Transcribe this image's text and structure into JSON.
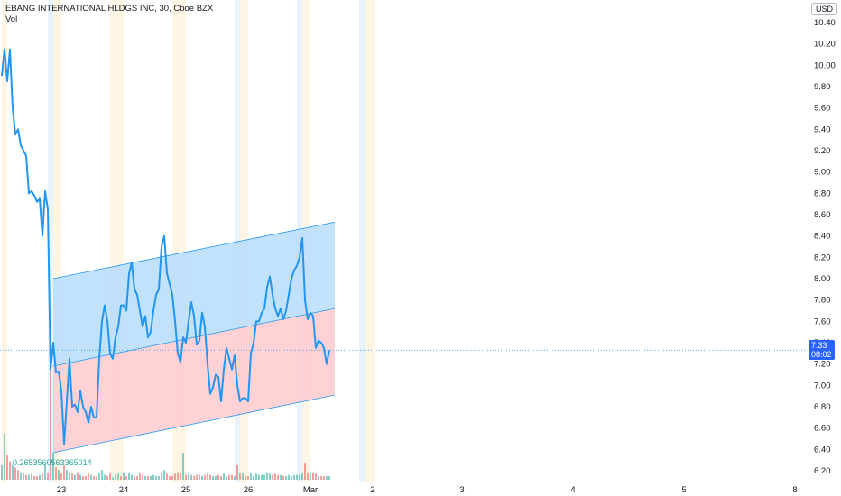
{
  "legend": {
    "title": "EBANG INTERNATIONAL HLDGS INC, 30, Cboe BZX",
    "indicator": "Vol",
    "volume_value": "0.2653560563365014"
  },
  "axis": {
    "currency": "USD"
  },
  "last_price": {
    "value": "7.33",
    "countdown": "08:02",
    "color": "#2962ff"
  },
  "colors": {
    "line": "#2196f3",
    "channel_upper_fill": "#bbdefb",
    "channel_lower_fill": "#ffcdd2",
    "session_blue": "#e3f2fd",
    "session_orange": "#fff3e0",
    "vol_up": "#26a69a",
    "vol_down": "#ef5350"
  },
  "chart_data": {
    "type": "line",
    "ylim": [
      6.1,
      10.5
    ],
    "y_ticks": [
      "10.40",
      "10.20",
      "10.00",
      "9.80",
      "9.60",
      "9.40",
      "9.20",
      "9.00",
      "8.80",
      "8.60",
      "8.40",
      "8.20",
      "8.00",
      "7.80",
      "7.60",
      "7.40",
      "7.20",
      "7.00",
      "6.80",
      "6.60",
      "6.40",
      "6.20"
    ],
    "x_ticks": [
      {
        "label": "23",
        "bar": 22
      },
      {
        "label": "24",
        "bar": 45
      },
      {
        "label": "25",
        "bar": 68
      },
      {
        "label": "26",
        "bar": 91
      },
      {
        "label": "Mar",
        "bar": 114
      },
      {
        "label": "2",
        "bar": 137
      },
      {
        "label": "3",
        "bar": 170
      },
      {
        "label": "4",
        "bar": 211
      },
      {
        "label": "5",
        "bar": 252
      },
      {
        "label": "8",
        "bar": 293
      }
    ],
    "x_range": [
      0,
      310
    ],
    "series": [
      {
        "values": [
          9.9,
          10.15,
          9.85,
          10.15,
          9.6,
          9.35,
          9.4,
          9.25,
          9.2,
          9.15,
          8.8,
          8.82,
          8.78,
          8.72,
          8.75,
          8.4,
          8.82,
          8.65,
          7.15,
          7.4,
          7.12,
          7.13,
          6.95,
          6.45,
          6.85,
          7.25,
          6.8,
          6.82,
          6.75,
          6.95,
          6.8,
          6.75,
          6.65,
          6.8,
          6.7,
          6.7,
          7.25,
          7.6,
          7.75,
          7.6,
          7.3,
          7.25,
          7.45,
          7.55,
          7.75,
          7.75,
          7.7,
          8.05,
          8.15,
          7.9,
          7.85,
          7.7,
          7.55,
          7.65,
          7.45,
          7.5,
          7.7,
          7.85,
          7.9,
          8.3,
          8.4,
          8.05,
          7.95,
          7.85,
          7.6,
          7.3,
          7.22,
          7.45,
          7.4,
          7.6,
          7.78,
          7.65,
          7.38,
          7.42,
          7.68,
          7.55,
          7.2,
          6.92,
          6.98,
          7.1,
          7.08,
          6.85,
          7.15,
          7.35,
          7.25,
          7.15,
          7.28,
          7.0,
          6.85,
          6.88,
          6.88,
          6.85,
          7.3,
          7.4,
          7.6,
          7.6,
          7.68,
          7.72,
          7.92,
          8.02,
          7.85,
          7.72,
          7.65,
          7.72,
          7.62,
          7.7,
          7.85,
          8.0,
          8.08,
          8.12,
          8.2,
          8.38,
          7.8,
          7.62,
          7.68,
          7.65,
          7.35,
          7.42,
          7.4,
          7.35,
          7.2,
          7.33
        ]
      }
    ],
    "volume": [
      {
        "v": 0.12,
        "up": true
      },
      {
        "v": 0.38,
        "up": true
      },
      {
        "v": 0.2,
        "up": false
      },
      {
        "v": 0.15,
        "up": false
      },
      {
        "v": 0.12,
        "up": true
      },
      {
        "v": 0.1,
        "up": false
      },
      {
        "v": 0.08,
        "up": false
      },
      {
        "v": 0.06,
        "up": true
      },
      {
        "v": 0.05,
        "up": false
      },
      {
        "v": 0.04,
        "up": false
      },
      {
        "v": 0.04,
        "up": true
      },
      {
        "v": 0.05,
        "up": false
      },
      {
        "v": 0.03,
        "up": false
      },
      {
        "v": 0.03,
        "up": false
      },
      {
        "v": 0.04,
        "up": true
      },
      {
        "v": 0.05,
        "up": false
      },
      {
        "v": 0.12,
        "up": true
      },
      {
        "v": 0.06,
        "up": false
      },
      {
        "v": 1.0,
        "up": false
      },
      {
        "v": 0.22,
        "up": true
      },
      {
        "v": 0.1,
        "up": false
      },
      {
        "v": 0.08,
        "up": true
      },
      {
        "v": 0.05,
        "up": false
      },
      {
        "v": 0.12,
        "up": false
      },
      {
        "v": 0.08,
        "up": true
      },
      {
        "v": 0.06,
        "up": true
      },
      {
        "v": 0.05,
        "up": false
      },
      {
        "v": 0.04,
        "up": true
      },
      {
        "v": 0.06,
        "up": false
      },
      {
        "v": 0.04,
        "up": true
      },
      {
        "v": 0.03,
        "up": false
      },
      {
        "v": 0.03,
        "up": false
      },
      {
        "v": 0.05,
        "up": false
      },
      {
        "v": 0.04,
        "up": true
      },
      {
        "v": 0.03,
        "up": false
      },
      {
        "v": 0.03,
        "up": false
      },
      {
        "v": 0.06,
        "up": true
      },
      {
        "v": 0.08,
        "up": true
      },
      {
        "v": 0.04,
        "up": true
      },
      {
        "v": 0.03,
        "up": false
      },
      {
        "v": 0.05,
        "up": false
      },
      {
        "v": 0.02,
        "up": true
      },
      {
        "v": 0.04,
        "up": true
      },
      {
        "v": 0.05,
        "up": true
      },
      {
        "v": 0.03,
        "up": false
      },
      {
        "v": 0.06,
        "up": true
      },
      {
        "v": 0.03,
        "up": false
      },
      {
        "v": 0.06,
        "up": true
      },
      {
        "v": 0.04,
        "up": true
      },
      {
        "v": 0.03,
        "up": false
      },
      {
        "v": 0.03,
        "up": false
      },
      {
        "v": 0.05,
        "up": false
      },
      {
        "v": 0.04,
        "up": false
      },
      {
        "v": 0.03,
        "up": true
      },
      {
        "v": 0.03,
        "up": false
      },
      {
        "v": 0.03,
        "up": true
      },
      {
        "v": 0.04,
        "up": true
      },
      {
        "v": 0.03,
        "up": true
      },
      {
        "v": 0.03,
        "up": true
      },
      {
        "v": 0.06,
        "up": true
      },
      {
        "v": 0.08,
        "up": true
      },
      {
        "v": 0.05,
        "up": false
      },
      {
        "v": 0.03,
        "up": false
      },
      {
        "v": 0.03,
        "up": false
      },
      {
        "v": 0.05,
        "up": false
      },
      {
        "v": 0.06,
        "up": false
      },
      {
        "v": 0.06,
        "up": false
      },
      {
        "v": 0.22,
        "up": true
      },
      {
        "v": 0.04,
        "up": false
      },
      {
        "v": 0.05,
        "up": true
      },
      {
        "v": 0.04,
        "up": true
      },
      {
        "v": 0.03,
        "up": false
      },
      {
        "v": 0.04,
        "up": false
      },
      {
        "v": 0.04,
        "up": true
      },
      {
        "v": 0.03,
        "up": true
      },
      {
        "v": 0.04,
        "up": false
      },
      {
        "v": 0.05,
        "up": false
      },
      {
        "v": 0.04,
        "up": false
      },
      {
        "v": 0.03,
        "up": true
      },
      {
        "v": 0.03,
        "up": true
      },
      {
        "v": 0.04,
        "up": false
      },
      {
        "v": 0.03,
        "up": false
      },
      {
        "v": 0.05,
        "up": true
      },
      {
        "v": 0.03,
        "up": true
      },
      {
        "v": 0.04,
        "up": false
      },
      {
        "v": 0.04,
        "up": false
      },
      {
        "v": 0.03,
        "up": true
      },
      {
        "v": 0.12,
        "up": false
      },
      {
        "v": 0.05,
        "up": false
      },
      {
        "v": 0.05,
        "up": true
      },
      {
        "v": 0.03,
        "up": false
      },
      {
        "v": 0.03,
        "up": false
      },
      {
        "v": 0.06,
        "up": true
      },
      {
        "v": 0.03,
        "up": true
      },
      {
        "v": 0.05,
        "up": true
      },
      {
        "v": 0.04,
        "up": true
      },
      {
        "v": 0.04,
        "up": true
      },
      {
        "v": 0.04,
        "up": true
      },
      {
        "v": 0.06,
        "up": true
      },
      {
        "v": 0.05,
        "up": true
      },
      {
        "v": 0.04,
        "up": false
      },
      {
        "v": 0.05,
        "up": false
      },
      {
        "v": 0.04,
        "up": false
      },
      {
        "v": 0.04,
        "up": true
      },
      {
        "v": 0.03,
        "up": false
      },
      {
        "v": 0.03,
        "up": true
      },
      {
        "v": 0.04,
        "up": true
      },
      {
        "v": 0.03,
        "up": true
      },
      {
        "v": 0.04,
        "up": true
      },
      {
        "v": 0.04,
        "up": true
      },
      {
        "v": 0.04,
        "up": true
      },
      {
        "v": 0.05,
        "up": true
      },
      {
        "v": 0.14,
        "up": false
      },
      {
        "v": 0.06,
        "up": false
      },
      {
        "v": 0.05,
        "up": true
      },
      {
        "v": 0.06,
        "up": false
      },
      {
        "v": 0.05,
        "up": false
      },
      {
        "v": 0.03,
        "up": true
      },
      {
        "v": 0.03,
        "up": false
      },
      {
        "v": 0.03,
        "up": false
      },
      {
        "v": 0.03,
        "up": true
      },
      {
        "v": 0.03,
        "up": true
      }
    ],
    "channel": {
      "upper": {
        "start": [
          19,
          8.0
        ],
        "end": [
          123,
          8.53
        ]
      },
      "middle": {
        "start": [
          19,
          7.18
        ],
        "end": [
          123,
          7.72
        ]
      },
      "lower": {
        "start": [
          19,
          6.37
        ],
        "end": [
          123,
          6.91
        ]
      }
    },
    "sessions": [
      {
        "from": 0,
        "to": 2,
        "kind": "orange"
      },
      {
        "from": 17,
        "to": 19,
        "kind": "blue"
      },
      {
        "from": 19,
        "to": 22,
        "kind": "orange"
      },
      {
        "from": 40,
        "to": 45,
        "kind": "orange"
      },
      {
        "from": 63,
        "to": 68,
        "kind": "orange"
      },
      {
        "from": 86,
        "to": 88,
        "kind": "blue"
      },
      {
        "from": 88,
        "to": 91,
        "kind": "orange"
      },
      {
        "from": 109,
        "to": 111,
        "kind": "blue"
      },
      {
        "from": 111,
        "to": 114,
        "kind": "orange"
      },
      {
        "from": 132,
        "to": 134,
        "kind": "blue"
      },
      {
        "from": 134,
        "to": 138,
        "kind": "orange"
      }
    ]
  }
}
